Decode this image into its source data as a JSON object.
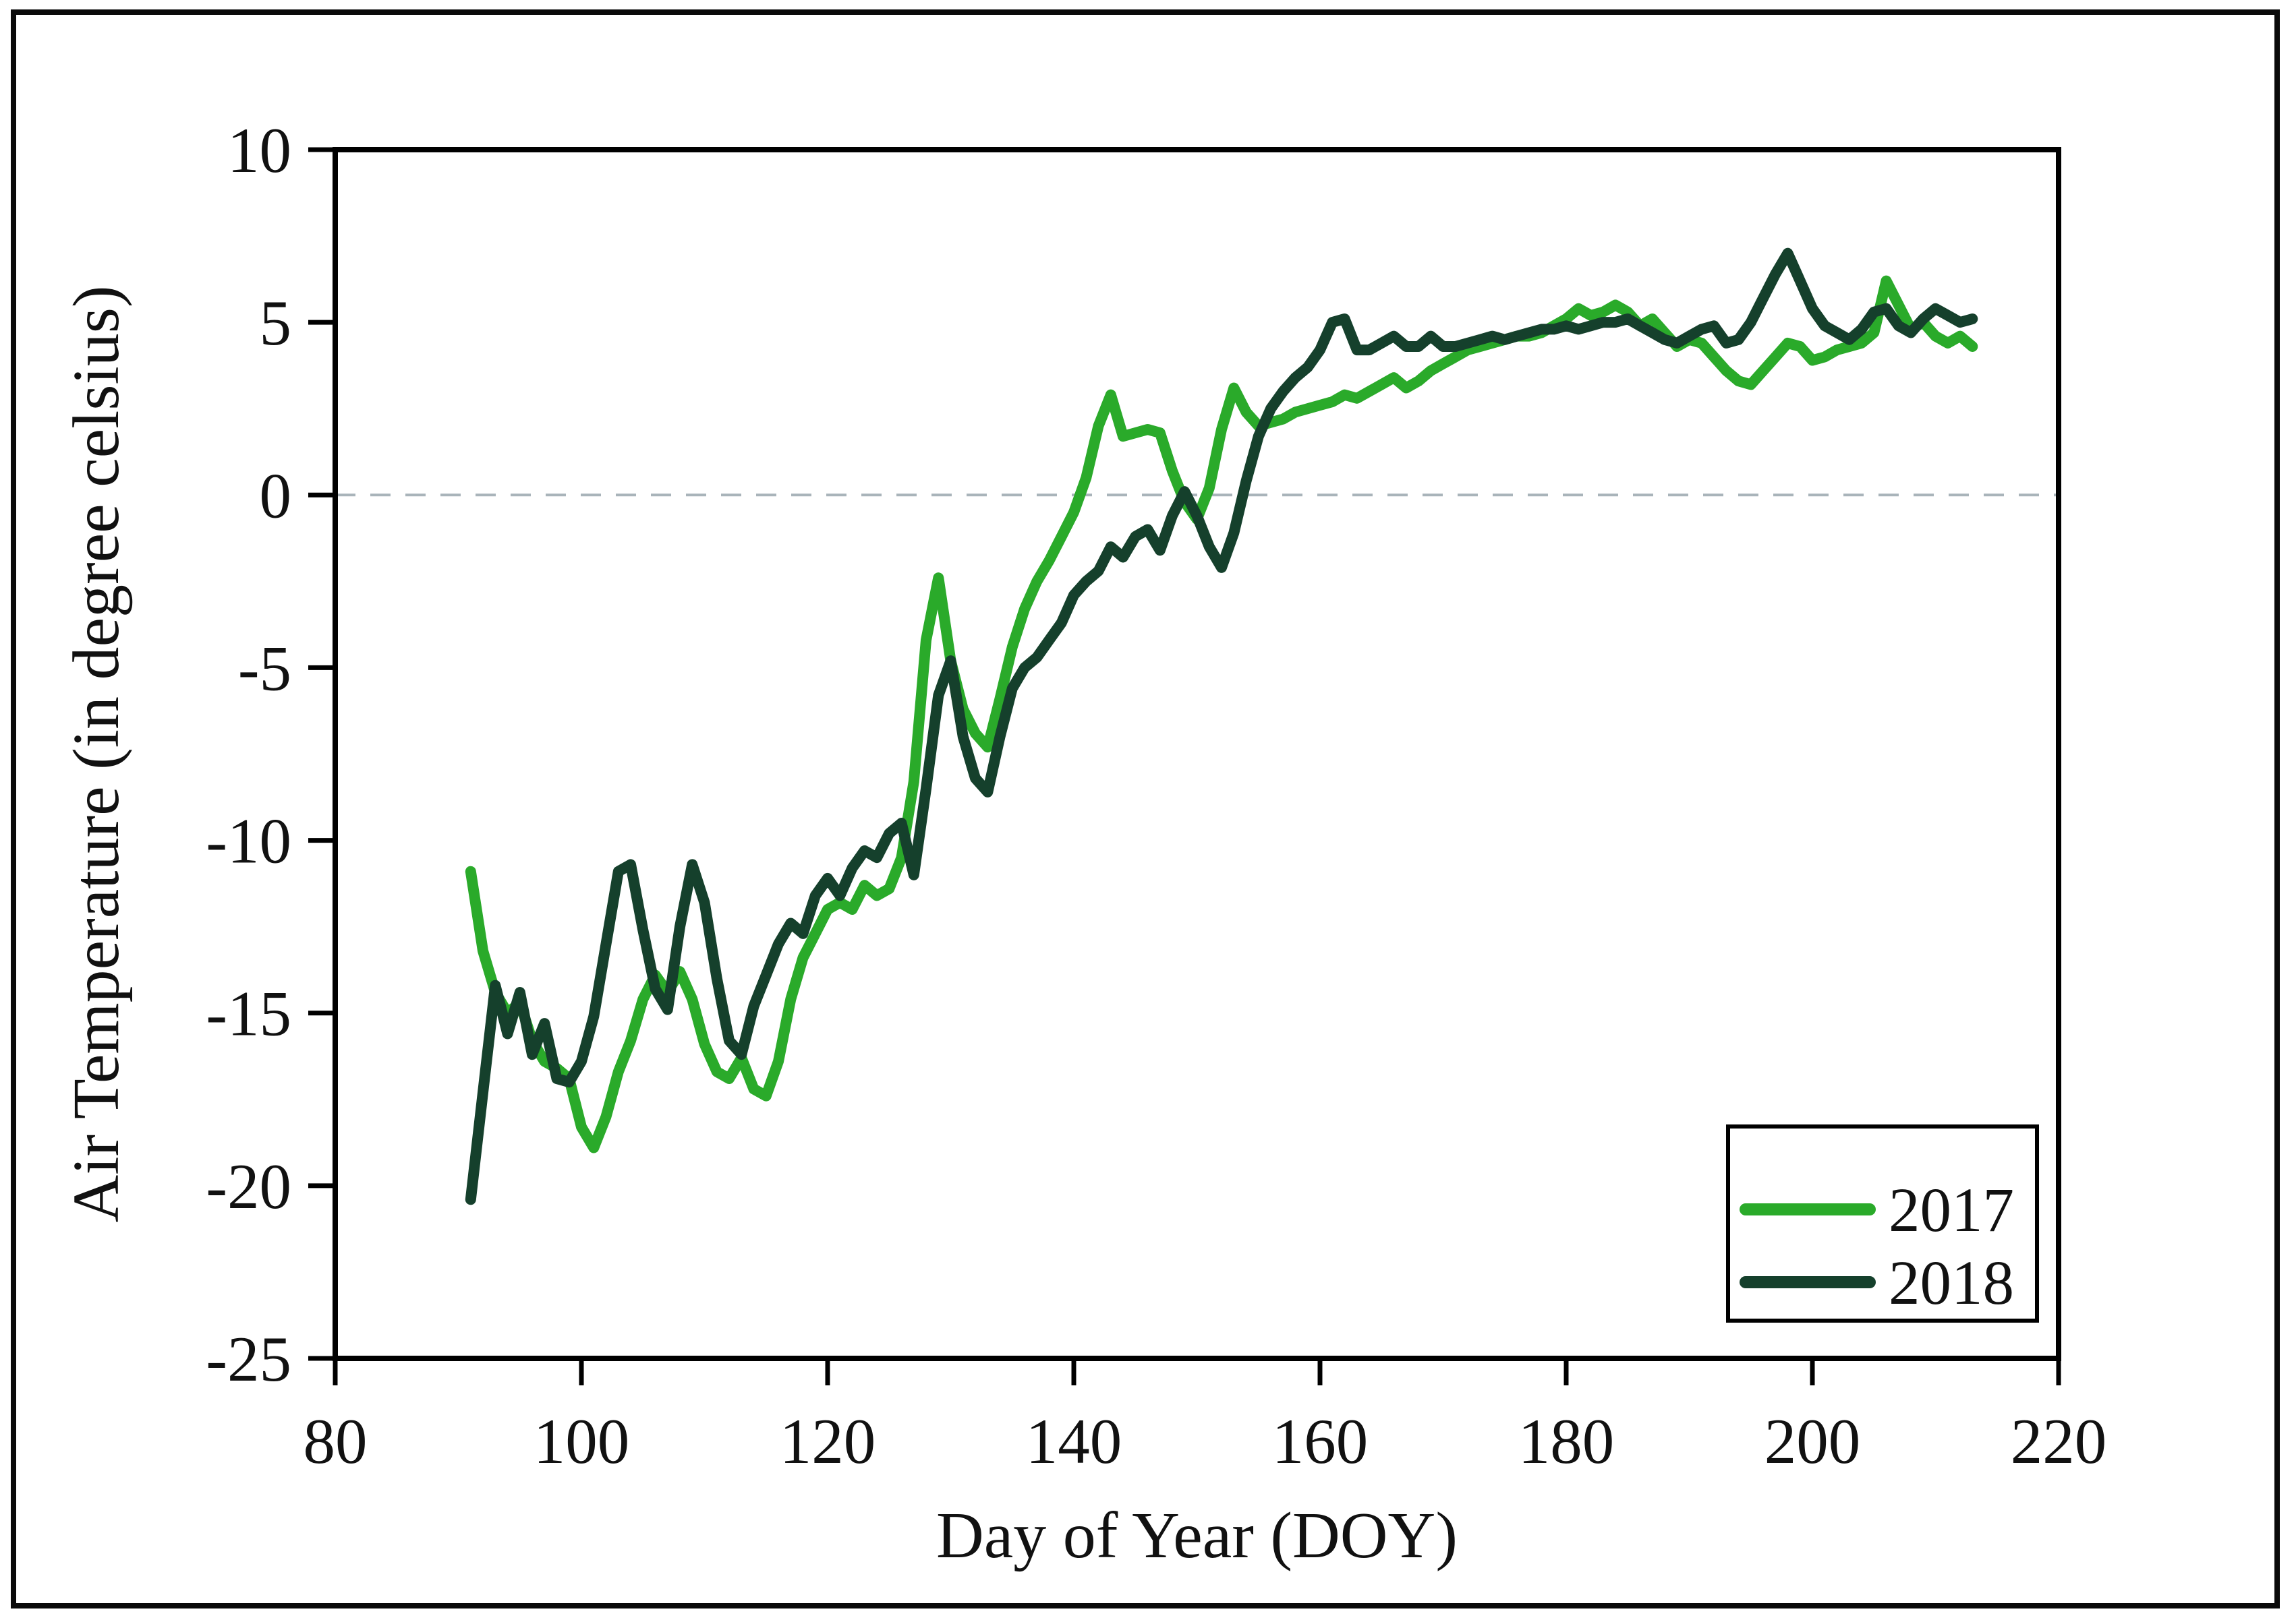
{
  "figure": {
    "background": "#ffffff",
    "border_color": "#0a0a0a",
    "axis_color": "#000000",
    "text_color": "#111111"
  },
  "chart_data": {
    "type": "line",
    "title": "",
    "xlabel": "Day of Year (DOY)",
    "ylabel": "Air Temperature (in degree celsius)",
    "xlim": [
      80,
      220
    ],
    "ylim": [
      -25,
      10
    ],
    "x_ticks": [
      80,
      100,
      120,
      140,
      160,
      180,
      200,
      220
    ],
    "y_ticks": [
      10,
      5,
      0,
      -5,
      -10,
      -15,
      -20,
      -25
    ],
    "grid": false,
    "reference_line": {
      "y": 0,
      "style": "dashed",
      "color": "#a9b4ba"
    },
    "legend": {
      "position": "lower-right",
      "entries": [
        "2017",
        "2018"
      ]
    },
    "x_days": [
      91,
      92,
      93,
      94,
      95,
      96,
      97,
      98,
      99,
      100,
      101,
      102,
      103,
      104,
      105,
      106,
      107,
      108,
      109,
      110,
      111,
      112,
      113,
      114,
      115,
      116,
      117,
      118,
      119,
      120,
      121,
      122,
      123,
      124,
      125,
      126,
      127,
      128,
      129,
      130,
      131,
      132,
      133,
      134,
      135,
      136,
      137,
      138,
      139,
      140,
      141,
      142,
      143,
      144,
      145,
      146,
      147,
      148,
      149,
      150,
      151,
      152,
      153,
      154,
      155,
      156,
      157,
      158,
      159,
      160,
      161,
      162,
      163,
      164,
      165,
      166,
      167,
      168,
      169,
      170,
      171,
      172,
      173,
      174,
      175,
      176,
      177,
      178,
      179,
      180,
      181,
      182,
      183,
      184,
      185,
      186,
      187,
      188,
      189,
      190,
      191,
      192,
      193,
      194,
      195,
      196,
      197,
      198,
      199,
      200,
      201,
      202,
      203,
      204,
      205,
      206,
      207,
      208,
      209,
      210,
      211,
      212,
      213
    ],
    "series": [
      {
        "name": "2017",
        "color": "#2aaa2a",
        "values": [
          -10.9,
          -13.2,
          -14.4,
          -15.0,
          -14.7,
          -15.8,
          -16.4,
          -16.6,
          -16.9,
          -18.3,
          -18.9,
          -18.0,
          -16.7,
          -15.8,
          -14.6,
          -13.9,
          -14.4,
          -13.8,
          -14.6,
          -15.9,
          -16.7,
          -16.9,
          -16.3,
          -17.2,
          -17.4,
          -16.4,
          -14.6,
          -13.4,
          -12.7,
          -12.0,
          -11.8,
          -12.0,
          -11.3,
          -11.6,
          -11.4,
          -10.5,
          -8.3,
          -4.2,
          -2.4,
          -4.8,
          -6.2,
          -6.9,
          -7.3,
          -5.9,
          -4.4,
          -3.3,
          -2.5,
          -1.9,
          -1.2,
          -0.5,
          0.5,
          2.0,
          2.9,
          1.7,
          1.8,
          1.9,
          1.8,
          0.7,
          -0.2,
          -0.7,
          0.2,
          1.9,
          3.1,
          2.4,
          2.0,
          2.1,
          2.2,
          2.4,
          2.5,
          2.6,
          2.7,
          2.9,
          2.8,
          3.0,
          3.2,
          3.4,
          3.1,
          3.3,
          3.6,
          3.8,
          4.0,
          4.2,
          4.3,
          4.4,
          4.5,
          4.6,
          4.6,
          4.7,
          4.9,
          5.1,
          5.4,
          5.2,
          5.3,
          5.5,
          5.3,
          4.9,
          5.1,
          4.7,
          4.3,
          4.5,
          4.4,
          4.0,
          3.6,
          3.3,
          3.2,
          3.6,
          4.0,
          4.4,
          4.3,
          3.9,
          4.0,
          4.2,
          4.3,
          4.4,
          4.7,
          6.2,
          5.5,
          4.8,
          5.0,
          4.6,
          4.4,
          4.6,
          4.3
        ]
      },
      {
        "name": "2018",
        "color": "#15402c",
        "values": [
          -20.4,
          -17.3,
          -14.2,
          -15.6,
          -14.4,
          -16.2,
          -15.3,
          -16.9,
          -17.0,
          -16.4,
          -15.1,
          -13.0,
          -10.9,
          -10.7,
          -12.6,
          -14.3,
          -14.9,
          -12.5,
          -10.7,
          -11.8,
          -14.0,
          -15.8,
          -16.2,
          -14.8,
          -13.9,
          -13.0,
          -12.4,
          -12.7,
          -11.6,
          -11.1,
          -11.6,
          -10.8,
          -10.3,
          -10.5,
          -9.8,
          -9.5,
          -11.0,
          -8.5,
          -5.8,
          -4.8,
          -7.0,
          -8.2,
          -8.6,
          -7.0,
          -5.6,
          -5.0,
          -4.7,
          -4.2,
          -3.7,
          -2.9,
          -2.5,
          -2.2,
          -1.5,
          -1.8,
          -1.2,
          -1.0,
          -1.6,
          -0.6,
          0.1,
          -0.6,
          -1.5,
          -2.1,
          -1.1,
          0.4,
          1.7,
          2.5,
          3.0,
          3.4,
          3.7,
          4.2,
          5.0,
          5.1,
          4.2,
          4.2,
          4.4,
          4.6,
          4.3,
          4.3,
          4.6,
          4.3,
          4.3,
          4.4,
          4.5,
          4.6,
          4.5,
          4.6,
          4.7,
          4.8,
          4.8,
          4.9,
          4.8,
          4.9,
          5.0,
          5.0,
          5.1,
          4.9,
          4.7,
          4.5,
          4.4,
          4.6,
          4.8,
          4.9,
          4.4,
          4.5,
          5.0,
          5.7,
          6.4,
          7.0,
          6.2,
          5.4,
          4.9,
          4.7,
          4.5,
          4.8,
          5.3,
          5.4,
          4.9,
          4.7,
          5.1,
          5.4,
          5.2,
          5.0,
          5.1
        ]
      }
    ]
  }
}
